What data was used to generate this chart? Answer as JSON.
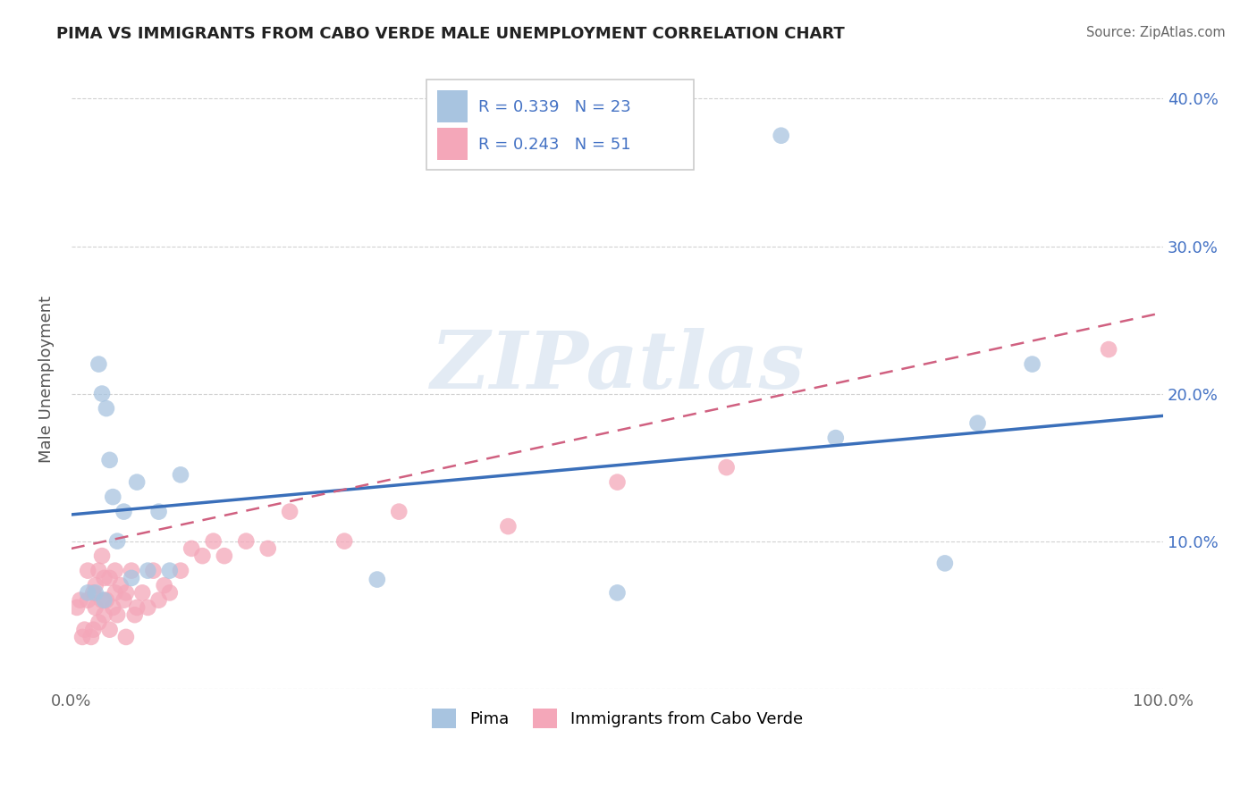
{
  "title": "PIMA VS IMMIGRANTS FROM CABO VERDE MALE UNEMPLOYMENT CORRELATION CHART",
  "source_text": "Source: ZipAtlas.com",
  "ylabel": "Male Unemployment",
  "watermark": "ZIPatlas",
  "xlim": [
    0,
    1.0
  ],
  "ylim": [
    0,
    0.42
  ],
  "xtick_labels": [
    "0.0%",
    "",
    "",
    "",
    "",
    "100.0%"
  ],
  "ytick_labels_right": [
    "10.0%",
    "20.0%",
    "30.0%",
    "40.0%"
  ],
  "pima_color": "#a8c4e0",
  "cabo_color": "#f4a7b9",
  "pima_line_color": "#3a6fba",
  "cabo_line_color": "#d06080",
  "legend_label1": "Pima",
  "legend_label2": "Immigrants from Cabo Verde",
  "pima_x": [
    0.015,
    0.022,
    0.025,
    0.028,
    0.032,
    0.035,
    0.038,
    0.042,
    0.048,
    0.055,
    0.06,
    0.07,
    0.08,
    0.1,
    0.28,
    0.5,
    0.65,
    0.7,
    0.8,
    0.83,
    0.88,
    0.03,
    0.09
  ],
  "pima_y": [
    0.065,
    0.065,
    0.22,
    0.2,
    0.19,
    0.155,
    0.13,
    0.1,
    0.12,
    0.075,
    0.14,
    0.08,
    0.12,
    0.145,
    0.074,
    0.065,
    0.375,
    0.17,
    0.085,
    0.18,
    0.22,
    0.06,
    0.08
  ],
  "cabo_x": [
    0.005,
    0.008,
    0.01,
    0.012,
    0.015,
    0.015,
    0.018,
    0.02,
    0.02,
    0.022,
    0.022,
    0.025,
    0.025,
    0.028,
    0.028,
    0.03,
    0.03,
    0.032,
    0.035,
    0.035,
    0.038,
    0.04,
    0.04,
    0.042,
    0.045,
    0.048,
    0.05,
    0.05,
    0.055,
    0.058,
    0.06,
    0.065,
    0.07,
    0.075,
    0.08,
    0.085,
    0.09,
    0.1,
    0.11,
    0.12,
    0.13,
    0.14,
    0.16,
    0.18,
    0.2,
    0.25,
    0.3,
    0.4,
    0.5,
    0.6,
    0.95
  ],
  "cabo_y": [
    0.055,
    0.06,
    0.035,
    0.04,
    0.06,
    0.08,
    0.035,
    0.04,
    0.065,
    0.055,
    0.07,
    0.045,
    0.08,
    0.06,
    0.09,
    0.05,
    0.075,
    0.06,
    0.04,
    0.075,
    0.055,
    0.065,
    0.08,
    0.05,
    0.07,
    0.06,
    0.035,
    0.065,
    0.08,
    0.05,
    0.055,
    0.065,
    0.055,
    0.08,
    0.06,
    0.07,
    0.065,
    0.08,
    0.095,
    0.09,
    0.1,
    0.09,
    0.1,
    0.095,
    0.12,
    0.1,
    0.12,
    0.11,
    0.14,
    0.15,
    0.23
  ],
  "pima_line_x0": 0.0,
  "pima_line_y0": 0.118,
  "pima_line_x1": 1.0,
  "pima_line_y1": 0.185,
  "cabo_line_x0": 0.0,
  "cabo_line_y0": 0.095,
  "cabo_line_x1": 1.0,
  "cabo_line_y1": 0.255,
  "background_color": "#ffffff",
  "grid_color": "#cccccc"
}
